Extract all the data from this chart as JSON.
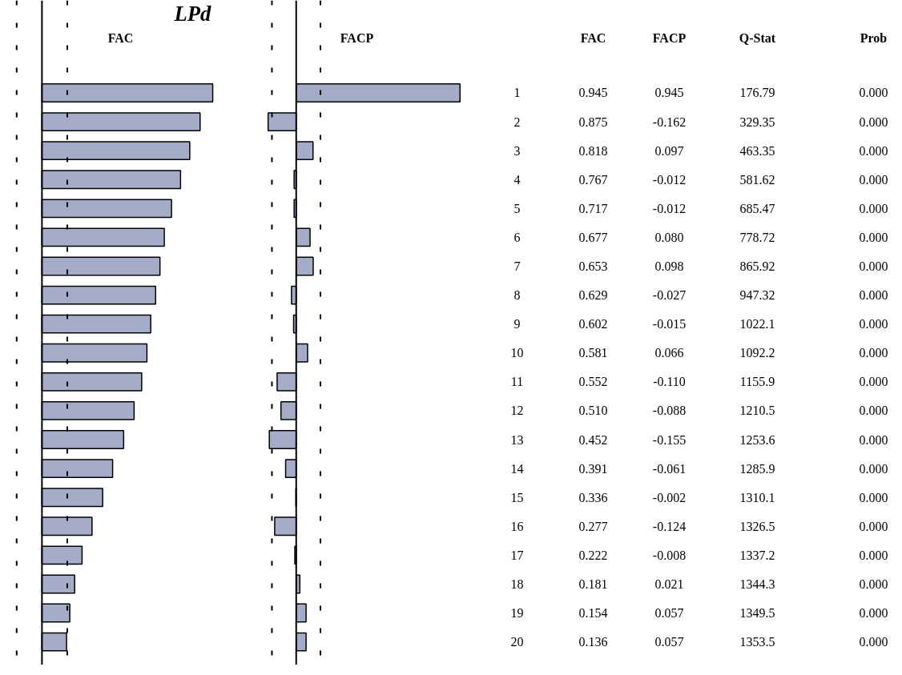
{
  "chart_data": [
    {
      "type": "bar",
      "orientation": "horizontal",
      "title": "LPd",
      "subtitle": "FAC",
      "categories": [
        "1",
        "2",
        "3",
        "4",
        "5",
        "6",
        "7",
        "8",
        "9",
        "10",
        "11",
        "12",
        "13",
        "14",
        "15",
        "16",
        "17",
        "18",
        "19",
        "20"
      ],
      "color": "#a4acc8",
      "values": [
        0.945,
        0.875,
        0.818,
        0.767,
        0.717,
        0.677,
        0.653,
        0.629,
        0.602,
        0.581,
        0.552,
        0.51,
        0.452,
        0.391,
        0.336,
        0.277,
        0.222,
        0.181,
        0.154,
        0.136
      ],
      "value_labels": [
        "0.945",
        "0.875",
        "0.818",
        "0.767",
        "0.717",
        "0.677",
        "0.653",
        "0.629",
        "0.602",
        "0.581",
        "0.552",
        "0.510",
        "0.452",
        "0.391",
        "0.336",
        "0.277",
        "0.222",
        "0.181",
        "0.154",
        "0.136"
      ],
      "xlim": [
        -0.23,
        1.1
      ],
      "tick_labels": "y",
      "grid": false,
      "ref_lines": [
        {
          "axis": "x",
          "value": -0.14,
          "label": null,
          "line_style": "dashed"
        },
        {
          "axis": "x",
          "value": 0.14,
          "label": null,
          "line_style": "dashed"
        }
      ]
    },
    {
      "type": "bar",
      "orientation": "horizontal",
      "subtitle": "FACP",
      "categories": [
        null,
        null,
        null,
        null,
        null,
        null,
        null,
        null,
        null,
        null,
        null,
        null,
        null,
        null,
        null,
        null,
        null,
        null,
        null,
        null
      ],
      "color": "#a4acc8",
      "values": [
        0.945,
        -0.162,
        0.097,
        -0.012,
        -0.012,
        0.08,
        0.098,
        -0.027,
        -0.015,
        0.066,
        -0.11,
        -0.088,
        -0.155,
        -0.061,
        -0.002,
        -0.124,
        -0.008,
        0.021,
        0.057,
        0.057
      ],
      "value_labels": [
        "0.945",
        "-0.162",
        "0.097",
        "-0.012",
        "-0.012",
        "0.080",
        "0.098",
        "-0.027",
        "-0.015",
        "0.066",
        "-0.110",
        "-0.088",
        "-0.155",
        "-0.061",
        "-0.002",
        "-0.124",
        "-0.008",
        "0.021",
        "0.057",
        "0.057"
      ],
      "xlim": [
        -0.32,
        1.02
      ],
      "tick_labels": false,
      "grid": false,
      "ref_lines": [
        {
          "axis": "x",
          "value": -0.14,
          "label": null,
          "line_style": "dashed"
        },
        {
          "axis": "x",
          "value": 0.14,
          "label": null,
          "line_style": "dashed"
        }
      ]
    },
    {
      "type": "other",
      "annotations": [
        "Q-Stat",
        "176.79",
        "329.35",
        "463.35",
        "581.62",
        "685.47",
        "778.72",
        "865.92",
        "947.32",
        "1022.1",
        "1092.2",
        "1155.9",
        "1210.5",
        "1253.6",
        "1285.9",
        "1310.1",
        "1326.5",
        "1337.2",
        "1344.3",
        "1349.5",
        "1353.5",
        "Prob",
        "0.000",
        "0.000",
        "0.000",
        "0.000",
        "0.000",
        "0.000",
        "0.000",
        "0.000",
        "0.000",
        "0.000",
        "0.000",
        "0.000",
        "0.000",
        "0.000",
        "0.000",
        "0.000",
        "0.000",
        "0.000",
        "0.000",
        "0.000"
      ]
    }
  ]
}
